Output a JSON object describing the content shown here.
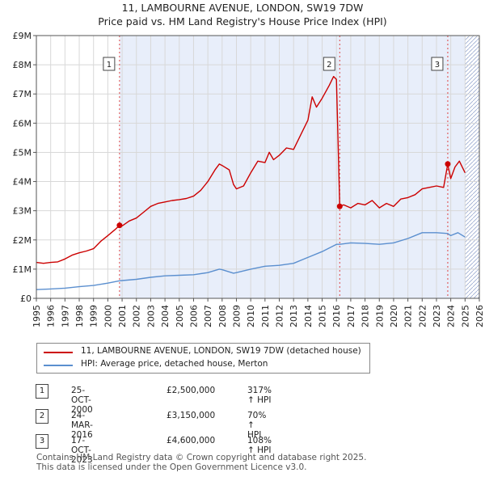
{
  "title": "11, LAMBOURNE AVENUE, LONDON, SW19 7DW",
  "subtitle": "Price paid vs. HM Land Registry's House Price Index (HPI)",
  "colors": {
    "property": "#cc0000",
    "hpi": "#5b8fcf",
    "shade": "#e8eefa",
    "grid": "#d8d8d8"
  },
  "legend": {
    "property": "11, LAMBOURNE AVENUE, LONDON, SW19 7DW (detached house)",
    "hpi": "HPI: Average price, detached house, Merton"
  },
  "sales": [
    {
      "num": "1",
      "date": "25-OCT-2000",
      "price": "£2,500,000",
      "hpi_pct": "317% ↑ HPI"
    },
    {
      "num": "2",
      "date": "24-MAR-2016",
      "price": "£3,150,000",
      "hpi_pct": "70% ↑ HPI"
    },
    {
      "num": "3",
      "date": "17-OCT-2023",
      "price": "£4,600,000",
      "hpi_pct": "108% ↑ HPI"
    }
  ],
  "footer": {
    "line1": "Contains HM Land Registry data © Crown copyright and database right 2025.",
    "line2": "This data is licensed under the Open Government Licence v3.0."
  },
  "chart_data": {
    "type": "line",
    "xlim": [
      1995,
      2026
    ],
    "ylim": [
      0,
      9000000
    ],
    "y_ticks": [
      {
        "v": 0,
        "label": "£0"
      },
      {
        "v": 1000000,
        "label": "£1M"
      },
      {
        "v": 2000000,
        "label": "£2M"
      },
      {
        "v": 3000000,
        "label": "£3M"
      },
      {
        "v": 4000000,
        "label": "£4M"
      },
      {
        "v": 5000000,
        "label": "£5M"
      },
      {
        "v": 6000000,
        "label": "£6M"
      },
      {
        "v": 7000000,
        "label": "£7M"
      },
      {
        "v": 8000000,
        "label": "£8M"
      },
      {
        "v": 9000000,
        "label": "£9M"
      }
    ],
    "x_ticks": [
      "1995",
      "1996",
      "1997",
      "1998",
      "1999",
      "2000",
      "2001",
      "2002",
      "2003",
      "2004",
      "2005",
      "2006",
      "2007",
      "2008",
      "2009",
      "2010",
      "2011",
      "2012",
      "2013",
      "2014",
      "2015",
      "2016",
      "2017",
      "2018",
      "2019",
      "2020",
      "2021",
      "2022",
      "2023",
      "2024",
      "2025",
      "2026"
    ],
    "shaded_from_first_sale": true,
    "forecast_start": 2025.0,
    "sale_markers": [
      {
        "label": "1",
        "x": 2000.82,
        "y": 2500000
      },
      {
        "label": "2",
        "x": 2016.23,
        "y": 3150000
      },
      {
        "label": "3",
        "x": 2023.79,
        "y": 4600000
      }
    ],
    "series": [
      {
        "name": "11, LAMBOURNE AVENUE, LONDON, SW19 7DW (detached house)",
        "key": "property",
        "points": [
          [
            1995,
            1230000
          ],
          [
            1995.5,
            1200000
          ],
          [
            1996,
            1230000
          ],
          [
            1996.5,
            1250000
          ],
          [
            1997,
            1350000
          ],
          [
            1997.5,
            1480000
          ],
          [
            1998,
            1560000
          ],
          [
            1998.5,
            1620000
          ],
          [
            1999,
            1700000
          ],
          [
            1999.5,
            1950000
          ],
          [
            2000,
            2150000
          ],
          [
            2000.5,
            2350000
          ],
          [
            2000.82,
            2500000
          ],
          [
            2001,
            2480000
          ],
          [
            2001.5,
            2650000
          ],
          [
            2002,
            2750000
          ],
          [
            2002.5,
            2950000
          ],
          [
            2003,
            3150000
          ],
          [
            2003.5,
            3250000
          ],
          [
            2004,
            3300000
          ],
          [
            2004.5,
            3350000
          ],
          [
            2005,
            3380000
          ],
          [
            2005.5,
            3420000
          ],
          [
            2006,
            3500000
          ],
          [
            2006.5,
            3700000
          ],
          [
            2007,
            4000000
          ],
          [
            2007.5,
            4400000
          ],
          [
            2007.8,
            4600000
          ],
          [
            2008,
            4550000
          ],
          [
            2008.5,
            4400000
          ],
          [
            2008.8,
            3900000
          ],
          [
            2009,
            3750000
          ],
          [
            2009.5,
            3850000
          ],
          [
            2010,
            4300000
          ],
          [
            2010.5,
            4700000
          ],
          [
            2011,
            4650000
          ],
          [
            2011.3,
            5000000
          ],
          [
            2011.6,
            4750000
          ],
          [
            2012,
            4900000
          ],
          [
            2012.5,
            5150000
          ],
          [
            2013,
            5100000
          ],
          [
            2013.5,
            5600000
          ],
          [
            2014,
            6100000
          ],
          [
            2014.3,
            6900000
          ],
          [
            2014.6,
            6550000
          ],
          [
            2015,
            6850000
          ],
          [
            2015.5,
            7300000
          ],
          [
            2015.8,
            7600000
          ],
          [
            2016,
            7500000
          ],
          [
            2016.23,
            3150000
          ],
          [
            2016.5,
            3200000
          ],
          [
            2017,
            3100000
          ],
          [
            2017.5,
            3250000
          ],
          [
            2018,
            3200000
          ],
          [
            2018.5,
            3350000
          ],
          [
            2019,
            3100000
          ],
          [
            2019.5,
            3250000
          ],
          [
            2020,
            3150000
          ],
          [
            2020.5,
            3400000
          ],
          [
            2021,
            3450000
          ],
          [
            2021.5,
            3550000
          ],
          [
            2022,
            3750000
          ],
          [
            2022.5,
            3800000
          ],
          [
            2023,
            3850000
          ],
          [
            2023.5,
            3800000
          ],
          [
            2023.79,
            4600000
          ],
          [
            2024,
            4100000
          ],
          [
            2024.3,
            4500000
          ],
          [
            2024.6,
            4700000
          ],
          [
            2025,
            4300000
          ]
        ]
      },
      {
        "name": "HPI: Average price, detached house, Merton",
        "key": "hpi",
        "points": [
          [
            1995,
            300000
          ],
          [
            1996,
            320000
          ],
          [
            1997,
            350000
          ],
          [
            1998,
            400000
          ],
          [
            1999,
            440000
          ],
          [
            2000,
            520000
          ],
          [
            2000.82,
            600000
          ],
          [
            2001,
            610000
          ],
          [
            2002,
            650000
          ],
          [
            2003,
            720000
          ],
          [
            2004,
            770000
          ],
          [
            2005,
            790000
          ],
          [
            2006,
            810000
          ],
          [
            2007,
            880000
          ],
          [
            2007.8,
            1000000
          ],
          [
            2008,
            980000
          ],
          [
            2008.8,
            860000
          ],
          [
            2009,
            880000
          ],
          [
            2010,
            1000000
          ],
          [
            2011,
            1100000
          ],
          [
            2012,
            1130000
          ],
          [
            2013,
            1200000
          ],
          [
            2014,
            1400000
          ],
          [
            2015,
            1600000
          ],
          [
            2016,
            1850000
          ],
          [
            2016.23,
            1850000
          ],
          [
            2017,
            1900000
          ],
          [
            2018,
            1880000
          ],
          [
            2019,
            1850000
          ],
          [
            2020,
            1900000
          ],
          [
            2021,
            2050000
          ],
          [
            2022,
            2250000
          ],
          [
            2023,
            2250000
          ],
          [
            2023.79,
            2220000
          ],
          [
            2024,
            2150000
          ],
          [
            2024.5,
            2250000
          ],
          [
            2025,
            2100000
          ]
        ]
      }
    ]
  }
}
